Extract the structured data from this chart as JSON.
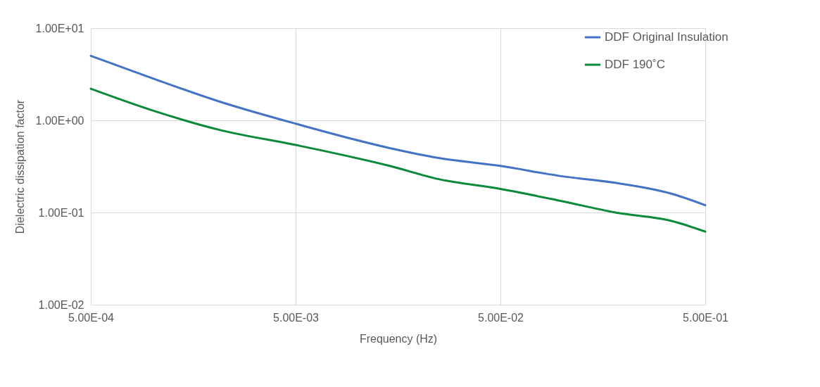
{
  "chart_data": {
    "type": "line",
    "xlabel": "Frequency (Hz)",
    "ylabel": "Dielectric dissipation factor",
    "log": "xy",
    "grid": true,
    "legend": "top right",
    "line_style": "solid",
    "xlim": [
      0.0005,
      0.5
    ],
    "xticks": [
      {
        "value": 0.0005,
        "label": "5.00E-04"
      },
      {
        "value": 0.005,
        "label": "5.00E-03"
      },
      {
        "value": 0.05,
        "label": "5.00E-02"
      },
      {
        "value": 0.5,
        "label": "5.00E-01"
      }
    ],
    "ylim": [
      0.01,
      10
    ],
    "yticks": [
      {
        "value": 0.01,
        "label": "1.00E-02"
      },
      {
        "value": 0.1,
        "label": "1.00E-01"
      },
      {
        "value": 1,
        "label": "1.00E+00"
      },
      {
        "value": 10,
        "label": "1.00E+01"
      }
    ],
    "x": [
      0.0005,
      0.00098,
      0.00216,
      0.005,
      0.0144,
      0.025,
      0.05,
      0.0964,
      0.1815,
      0.342,
      0.5
    ],
    "series": [
      {
        "name": "DDF Original Insulation",
        "color": "#4472c4",
        "values": [
          5.0,
          2.9,
          1.58,
          0.92,
          0.5,
          0.39,
          0.32,
          0.25,
          0.21,
          0.16,
          0.12
        ]
      },
      {
        "name": "DDF 190˚C",
        "color": "#0b8a3a",
        "values": [
          2.2,
          1.3,
          0.78,
          0.54,
          0.32,
          0.23,
          0.18,
          0.135,
          0.1,
          0.081,
          0.062
        ]
      }
    ]
  }
}
